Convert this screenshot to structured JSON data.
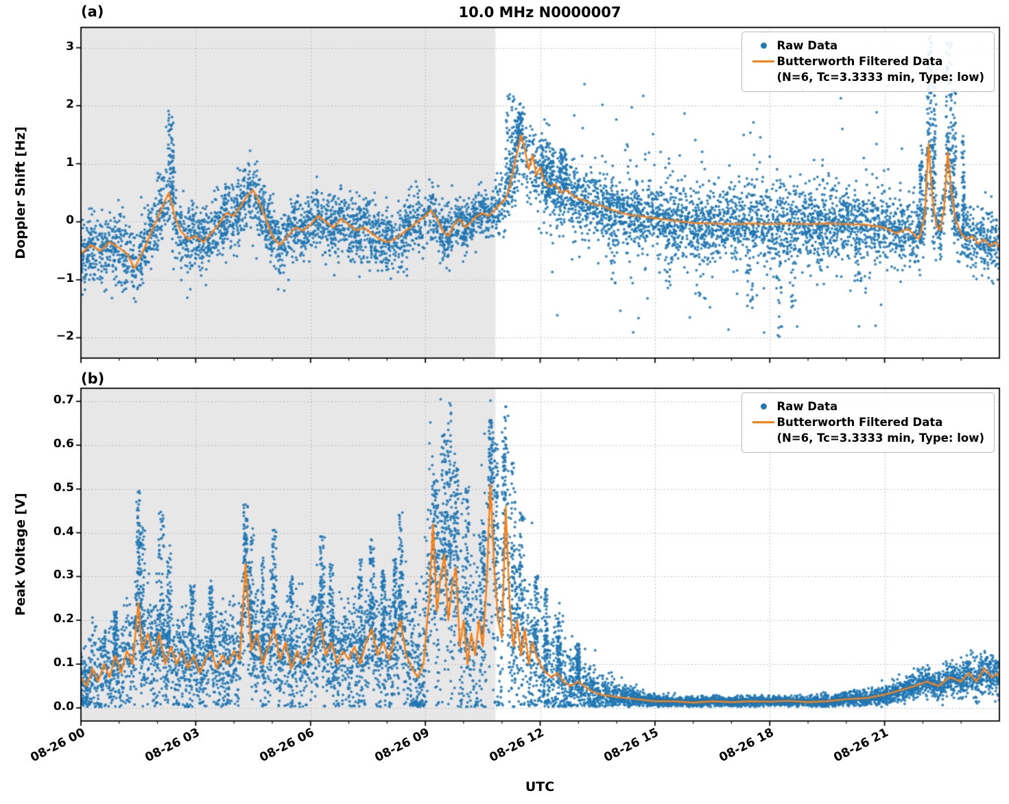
{
  "figure": {
    "panel_a_tag": "(a)",
    "panel_b_tag": "(b)"
  },
  "legend": {
    "raw_label": "Raw Data",
    "filtered_label": "Butterworth Filtered Data",
    "filtered_params": "(N=6, Tc=3.3333 min, Type: low)"
  },
  "colors": {
    "raw": "#1f77b4",
    "filtered": "#ff7f0e",
    "shading": "#e7e7e7",
    "grid": "#ababab",
    "axis": "#000000"
  },
  "chart_data": [
    {
      "type": "scatter",
      "panel": "(a)",
      "title": "10.0 MHz N0000007",
      "ylabel": "Doppler Shift [Hz]",
      "ylim": [
        -2.35,
        3.35
      ],
      "yticks": {
        "values": [
          -2,
          -1,
          0,
          1,
          2,
          3
        ],
        "labels": [
          "−2",
          "−1",
          "0",
          "1",
          "2",
          "3"
        ]
      },
      "xlim_hours": [
        0,
        24
      ],
      "xticks": {
        "hours": [
          0,
          3,
          6,
          9,
          12,
          15,
          18,
          21
        ],
        "labels": [
          "08-26 00",
          "08-26 03",
          "08-26 06",
          "08-26 09",
          "08-26 12",
          "08-26 15",
          "08-26 18",
          "08-26 21"
        ]
      },
      "shaded_hours": [
        0,
        10.83
      ],
      "legend_entries": [
        "Raw Data",
        "Butterworth Filtered Data (N=6, Tc=3.3333 min, Type: low)"
      ],
      "filtered_line": {
        "hours": [
          0,
          0.25,
          0.5,
          0.75,
          1.0,
          1.2,
          1.4,
          1.55,
          1.7,
          1.85,
          2.0,
          2.15,
          2.3,
          2.45,
          2.6,
          2.8,
          3.0,
          3.2,
          3.4,
          3.6,
          3.8,
          4.0,
          4.2,
          4.35,
          4.5,
          4.65,
          4.8,
          5.0,
          5.2,
          5.4,
          5.6,
          5.8,
          6.0,
          6.2,
          6.4,
          6.6,
          6.8,
          7.0,
          7.2,
          7.4,
          7.6,
          7.8,
          8.0,
          8.2,
          8.4,
          8.6,
          8.8,
          9.0,
          9.15,
          9.3,
          9.45,
          9.6,
          9.75,
          9.9,
          10.05,
          10.2,
          10.35,
          10.5,
          10.65,
          10.8,
          10.95,
          11.1,
          11.2,
          11.3,
          11.4,
          11.5,
          11.6,
          11.7,
          11.8,
          11.9,
          12.0,
          12.1,
          12.25,
          12.4,
          12.55,
          12.7,
          12.85,
          13.0,
          13.2,
          13.4,
          13.6,
          13.8,
          14.0,
          14.3,
          14.6,
          15.0,
          15.5,
          16.0,
          16.5,
          17.0,
          17.5,
          18.0,
          18.5,
          19.0,
          19.5,
          20.0,
          20.5,
          21.0,
          21.3,
          21.6,
          21.9,
          22.05,
          22.15,
          22.25,
          22.35,
          22.45,
          22.55,
          22.65,
          22.75,
          22.85,
          23.0,
          23.15,
          23.3,
          23.45,
          23.6,
          23.75,
          23.9,
          24.0
        ],
        "values": [
          -0.55,
          -0.4,
          -0.5,
          -0.35,
          -0.45,
          -0.55,
          -0.8,
          -0.6,
          -0.4,
          -0.15,
          0.05,
          0.3,
          0.5,
          0.1,
          -0.15,
          -0.3,
          -0.25,
          -0.35,
          -0.2,
          -0.05,
          0.15,
          0.1,
          0.3,
          0.45,
          0.55,
          0.35,
          0.1,
          -0.25,
          -0.4,
          -0.25,
          -0.1,
          -0.15,
          -0.05,
          0.1,
          0.0,
          -0.1,
          0.05,
          -0.05,
          -0.15,
          -0.1,
          -0.2,
          -0.3,
          -0.35,
          -0.3,
          -0.2,
          -0.1,
          0.0,
          0.1,
          0.2,
          0.05,
          -0.15,
          -0.25,
          -0.05,
          0.05,
          -0.1,
          0.0,
          0.1,
          0.15,
          0.1,
          0.2,
          0.3,
          0.4,
          0.6,
          0.9,
          1.2,
          1.5,
          1.25,
          0.9,
          1.15,
          0.8,
          0.95,
          0.7,
          0.6,
          0.65,
          0.5,
          0.55,
          0.45,
          0.4,
          0.35,
          0.3,
          0.28,
          0.22,
          0.18,
          0.12,
          0.1,
          0.06,
          0.02,
          -0.02,
          -0.03,
          -0.04,
          -0.03,
          -0.04,
          -0.03,
          -0.04,
          -0.03,
          -0.04,
          -0.05,
          -0.1,
          -0.2,
          -0.12,
          -0.3,
          0.1,
          1.35,
          0.4,
          -0.05,
          -0.15,
          0.2,
          1.2,
          0.5,
          0.05,
          -0.2,
          -0.3,
          -0.25,
          -0.38,
          -0.3,
          -0.42,
          -0.35,
          -0.45
        ]
      },
      "raw_scatter": {
        "count": 6500,
        "sigma_points": [
          [
            0,
            0.27
          ],
          [
            2,
            0.3
          ],
          [
            2.35,
            0.4
          ],
          [
            3,
            0.28
          ],
          [
            4.5,
            0.3
          ],
          [
            6,
            0.27
          ],
          [
            8,
            0.3
          ],
          [
            9.5,
            0.25
          ],
          [
            10.5,
            0.2
          ],
          [
            11,
            0.25
          ],
          [
            11.5,
            0.35
          ],
          [
            12,
            0.32
          ],
          [
            13,
            0.3
          ],
          [
            14,
            0.27
          ],
          [
            16,
            0.3
          ],
          [
            18,
            0.33
          ],
          [
            20,
            0.3
          ],
          [
            21.5,
            0.27
          ],
          [
            22.5,
            0.3
          ],
          [
            24,
            0.28
          ]
        ],
        "spikes_up": [
          [
            2.35,
            0.07,
            2.0
          ],
          [
            11.25,
            0.15,
            2.2
          ],
          [
            11.45,
            0.1,
            1.9
          ],
          [
            22.17,
            0.06,
            3.2
          ],
          [
            22.3,
            0.05,
            2.4
          ],
          [
            22.68,
            0.08,
            3.2
          ],
          [
            22.82,
            0.05,
            2.3
          ],
          [
            21.95,
            0.04,
            1.4
          ],
          [
            23.05,
            0.04,
            1.5
          ],
          [
            12.2,
            0.15,
            1.35
          ],
          [
            12.6,
            0.1,
            1.25
          ]
        ],
        "spikes_down": [
          [
            13.9,
            0.08,
            -1.1
          ],
          [
            15.4,
            0.15,
            -1.2
          ],
          [
            16.2,
            0.12,
            -1.35
          ],
          [
            17.5,
            0.1,
            -1.6
          ],
          [
            18.25,
            0.08,
            -2.0
          ],
          [
            18.6,
            0.08,
            -1.5
          ],
          [
            20.3,
            0.1,
            -1.05
          ],
          [
            19.3,
            0.08,
            -1.1
          ]
        ],
        "outliers": {
          "count": 280,
          "h_min": 12,
          "h_max": 21.8,
          "sigma": 0.85
        }
      }
    },
    {
      "type": "scatter",
      "panel": "(b)",
      "ylabel": "Peak Voltage [V]",
      "xlabel": "UTC",
      "ylim": [
        -0.03,
        0.73
      ],
      "yticks": {
        "values": [
          0.0,
          0.1,
          0.2,
          0.3,
          0.4,
          0.5,
          0.6,
          0.7
        ],
        "labels": [
          "0.0",
          "0.1",
          "0.2",
          "0.3",
          "0.4",
          "0.5",
          "0.6",
          "0.7"
        ]
      },
      "xlim_hours": [
        0,
        24
      ],
      "xticks": {
        "hours": [
          0,
          3,
          6,
          9,
          12,
          15,
          18,
          21
        ],
        "labels": [
          "08-26 00",
          "08-26 03",
          "08-26 06",
          "08-26 09",
          "08-26 12",
          "08-26 15",
          "08-26 18",
          "08-26 21"
        ]
      },
      "shaded_hours": [
        0,
        10.83
      ],
      "legend_entries": [
        "Raw Data",
        "Butterworth Filtered Data (N=6, Tc=3.3333 min, Type: low)"
      ],
      "filtered_line": {
        "hours": [
          0,
          0.15,
          0.3,
          0.45,
          0.6,
          0.75,
          0.9,
          1.05,
          1.2,
          1.35,
          1.5,
          1.6,
          1.75,
          1.9,
          2.05,
          2.2,
          2.35,
          2.5,
          2.65,
          2.8,
          2.95,
          3.1,
          3.25,
          3.4,
          3.55,
          3.7,
          3.85,
          4.0,
          4.15,
          4.3,
          4.45,
          4.6,
          4.75,
          4.9,
          5.05,
          5.2,
          5.35,
          5.5,
          5.65,
          5.8,
          5.95,
          6.1,
          6.25,
          6.4,
          6.55,
          6.7,
          6.85,
          7.0,
          7.15,
          7.3,
          7.45,
          7.6,
          7.75,
          7.9,
          8.05,
          8.2,
          8.35,
          8.5,
          8.65,
          8.8,
          8.95,
          9.1,
          9.2,
          9.3,
          9.4,
          9.5,
          9.6,
          9.7,
          9.8,
          9.9,
          10.0,
          10.1,
          10.2,
          10.3,
          10.4,
          10.5,
          10.6,
          10.7,
          10.8,
          10.9,
          11.0,
          11.1,
          11.2,
          11.3,
          11.4,
          11.5,
          11.6,
          11.7,
          11.8,
          11.9,
          12.0,
          12.15,
          12.3,
          12.45,
          12.6,
          12.8,
          13.0,
          13.3,
          13.6,
          14.0,
          14.5,
          15.0,
          15.5,
          16.0,
          16.5,
          17.0,
          17.5,
          18.0,
          18.5,
          19.0,
          19.5,
          20.0,
          20.5,
          21.0,
          21.4,
          21.8,
          22.1,
          22.4,
          22.7,
          23.0,
          23.2,
          23.4,
          23.6,
          23.8,
          24.0
        ],
        "values": [
          0.07,
          0.05,
          0.09,
          0.06,
          0.1,
          0.07,
          0.12,
          0.08,
          0.13,
          0.1,
          0.24,
          0.13,
          0.17,
          0.12,
          0.17,
          0.1,
          0.14,
          0.1,
          0.13,
          0.09,
          0.12,
          0.08,
          0.11,
          0.13,
          0.09,
          0.12,
          0.1,
          0.13,
          0.11,
          0.33,
          0.13,
          0.17,
          0.1,
          0.14,
          0.18,
          0.11,
          0.15,
          0.09,
          0.13,
          0.1,
          0.12,
          0.16,
          0.2,
          0.12,
          0.15,
          0.1,
          0.13,
          0.11,
          0.14,
          0.1,
          0.15,
          0.18,
          0.12,
          0.15,
          0.11,
          0.16,
          0.2,
          0.12,
          0.09,
          0.07,
          0.1,
          0.25,
          0.42,
          0.22,
          0.3,
          0.35,
          0.2,
          0.28,
          0.32,
          0.14,
          0.2,
          0.1,
          0.17,
          0.12,
          0.2,
          0.14,
          0.28,
          0.51,
          0.32,
          0.2,
          0.16,
          0.46,
          0.24,
          0.14,
          0.2,
          0.12,
          0.18,
          0.1,
          0.15,
          0.12,
          0.1,
          0.08,
          0.07,
          0.08,
          0.06,
          0.05,
          0.06,
          0.04,
          0.03,
          0.025,
          0.02,
          0.015,
          0.015,
          0.012,
          0.015,
          0.013,
          0.015,
          0.014,
          0.016,
          0.013,
          0.015,
          0.02,
          0.022,
          0.03,
          0.04,
          0.05,
          0.06,
          0.05,
          0.07,
          0.06,
          0.08,
          0.06,
          0.09,
          0.07,
          0.08
        ]
      },
      "raw_scatter": {
        "count": 8000,
        "sigma_points": [
          [
            0,
            0.045
          ],
          [
            1,
            0.055
          ],
          [
            2,
            0.06
          ],
          [
            3,
            0.055
          ],
          [
            4,
            0.06
          ],
          [
            5,
            0.06
          ],
          [
            6,
            0.06
          ],
          [
            7,
            0.06
          ],
          [
            8,
            0.065
          ],
          [
            9,
            0.1
          ],
          [
            9.5,
            0.14
          ],
          [
            10,
            0.13
          ],
          [
            10.5,
            0.15
          ],
          [
            11,
            0.14
          ],
          [
            11.5,
            0.1
          ],
          [
            12,
            0.07
          ],
          [
            12.5,
            0.055
          ],
          [
            13,
            0.04
          ],
          [
            13.5,
            0.028
          ],
          [
            14,
            0.014
          ],
          [
            14.5,
            0.01
          ],
          [
            15,
            0.007
          ],
          [
            16,
            0.006
          ],
          [
            17,
            0.006
          ],
          [
            18,
            0.006
          ],
          [
            19,
            0.007
          ],
          [
            20,
            0.008
          ],
          [
            21,
            0.011
          ],
          [
            22,
            0.016
          ],
          [
            23,
            0.02
          ],
          [
            24,
            0.026
          ]
        ],
        "spikes_up": [
          [
            0.9,
            0.04,
            0.22
          ],
          [
            1.5,
            0.05,
            0.5
          ],
          [
            1.6,
            0.07,
            0.42
          ],
          [
            2.1,
            0.07,
            0.45
          ],
          [
            2.3,
            0.05,
            0.38
          ],
          [
            2.9,
            0.05,
            0.28
          ],
          [
            3.4,
            0.05,
            0.3
          ],
          [
            4.3,
            0.06,
            0.47
          ],
          [
            4.45,
            0.05,
            0.42
          ],
          [
            4.75,
            0.05,
            0.35
          ],
          [
            5.05,
            0.06,
            0.41
          ],
          [
            5.5,
            0.05,
            0.3
          ],
          [
            6.3,
            0.07,
            0.4
          ],
          [
            6.55,
            0.05,
            0.33
          ],
          [
            7.3,
            0.05,
            0.35
          ],
          [
            7.6,
            0.06,
            0.4
          ],
          [
            7.9,
            0.05,
            0.33
          ],
          [
            8.2,
            0.05,
            0.35
          ],
          [
            8.35,
            0.05,
            0.45
          ],
          [
            9.25,
            0.08,
            0.52
          ],
          [
            9.5,
            0.07,
            0.64
          ],
          [
            9.62,
            0.05,
            0.7
          ],
          [
            9.8,
            0.06,
            0.56
          ],
          [
            10.1,
            0.05,
            0.5
          ],
          [
            10.5,
            0.05,
            0.45
          ],
          [
            10.72,
            0.06,
            0.66
          ],
          [
            10.85,
            0.05,
            0.62
          ],
          [
            11.05,
            0.06,
            0.67
          ],
          [
            11.3,
            0.05,
            0.56
          ],
          [
            11.5,
            0.05,
            0.45
          ],
          [
            11.9,
            0.05,
            0.3
          ],
          [
            12.15,
            0.04,
            0.28
          ],
          [
            12.5,
            0.04,
            0.2
          ],
          [
            13.0,
            0.04,
            0.15
          ]
        ],
        "spikes_down": [],
        "outliers": {
          "count": 0,
          "h_min": 0,
          "h_max": 0,
          "sigma": 0
        }
      }
    }
  ]
}
